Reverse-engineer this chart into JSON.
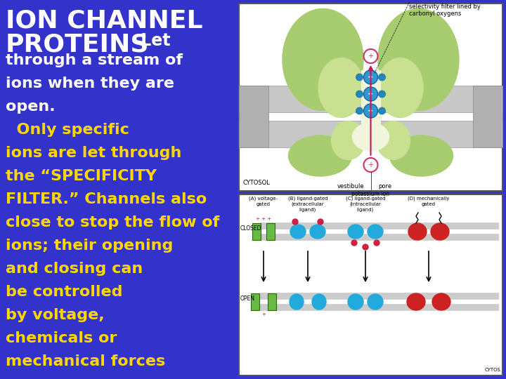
{
  "background_color": "#3333CC",
  "text_color_white": "#FFFFFF",
  "text_color_yellow": "#FFD700",
  "title1": "ION CHANNEL",
  "title2": "PROTEINS",
  "title_suffix": "Let",
  "white_lines": [
    "through a stream of",
    "ions when they are",
    "open."
  ],
  "yellow_lines": [
    "  Only specific",
    "ions are let through",
    "the “SPECIFICITY",
    "FILTER.” Channels also",
    "close to stop the flow of",
    "ions; their opening",
    "and closing can",
    "be controlled",
    "by voltage,",
    "chemicals or",
    "mechanical forces"
  ]
}
